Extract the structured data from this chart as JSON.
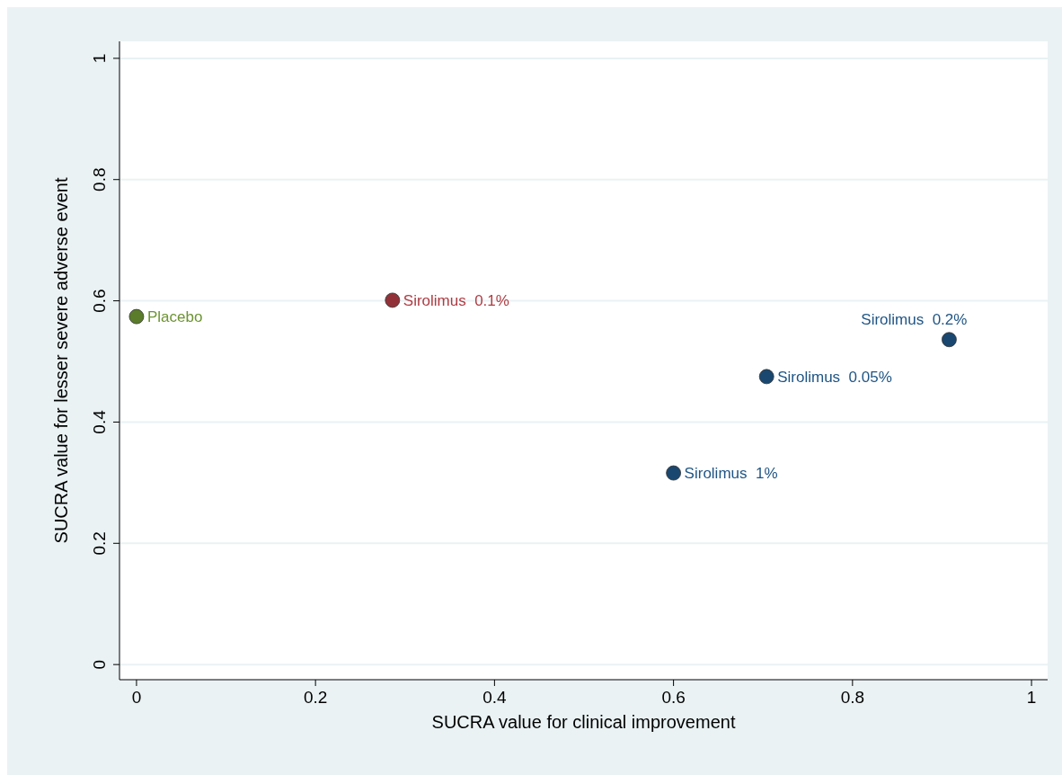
{
  "chart_data": {
    "type": "scatter",
    "xlabel": "SUCRA value for clinical improvement",
    "ylabel": "SUCRA value for lesser severe adverse event",
    "xlim": [
      -0.019,
      1.018
    ],
    "ylim": [
      -0.025,
      1.028
    ],
    "xticks": [
      0,
      0.2,
      0.4,
      0.6,
      0.8,
      1
    ],
    "yticks": [
      0,
      0.2,
      0.4,
      0.6,
      0.8,
      1
    ],
    "grid": "y",
    "marker": "circle",
    "series": [
      {
        "name": "Placebo",
        "color": "#5b7c2a",
        "x": [
          0.0
        ],
        "values": [
          0.574
        ]
      },
      {
        "name": "Sirolimus  0.1%",
        "color": "#923238",
        "x": [
          0.286
        ],
        "values": [
          0.601
        ]
      },
      {
        "name": "Sirolimus  0.2%",
        "color": "#1a476f",
        "x": [
          0.908
        ],
        "values": [
          0.536
        ]
      },
      {
        "name": "Sirolimus  0.05%",
        "color": "#1a476f",
        "x": [
          0.704
        ],
        "values": [
          0.475
        ]
      },
      {
        "name": "Sirolimus  1%",
        "color": "#1a476f",
        "x": [
          0.6
        ],
        "values": [
          0.316
        ]
      }
    ]
  }
}
